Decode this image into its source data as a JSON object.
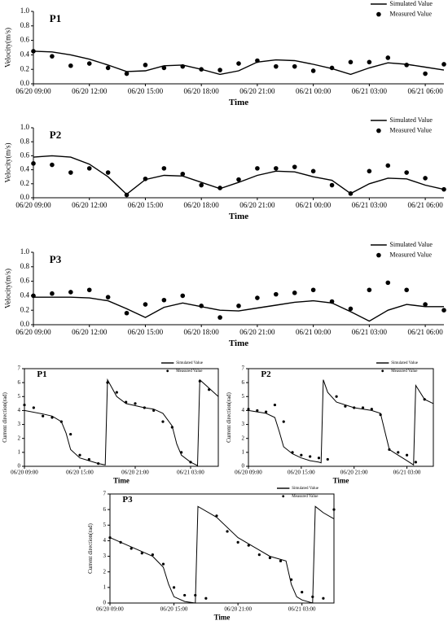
{
  "chart_data": [
    {
      "type": "line",
      "title": "P1",
      "xlabel": "Time",
      "ylabel": "Velocity(m/s)",
      "x": [
        "06/20 09:00",
        "06/20 10:00",
        "06/20 11:00",
        "06/20 12:00",
        "06/20 13:00",
        "06/20 14:00",
        "06/20 15:00",
        "06/20 16:00",
        "06/20 17:00",
        "06/20 18:00",
        "06/20 19:00",
        "06/20 20:00",
        "06/20 21:00",
        "06/20 22:00",
        "06/20 23:00",
        "06/21 00:00",
        "06/21 01:00",
        "06/21 02:00",
        "06/21 03:00",
        "06/21 04:00",
        "06/21 05:00",
        "06/21 06:00",
        "06/21 07:00"
      ],
      "xlim": [
        "06/20 09:00",
        "06/21 07:00"
      ],
      "xticks": [
        "06/20 09:00",
        "06/20 12:00",
        "06/20 15:00",
        "06/20 18:00",
        "06/20 21:00",
        "06/21 00:00",
        "06/21 03:00",
        "06/21 06:00"
      ],
      "ylim": [
        0,
        1
      ],
      "yticks": [
        {
          "value": 0,
          "label": "0.0"
        },
        0.2,
        0.4,
        0.6,
        0.8,
        {
          "value": 1,
          "label": "1.0"
        }
      ],
      "legend": "upper right",
      "frame": false,
      "series": [
        {
          "name": "Simulated Value",
          "style": "line",
          "color": "#000000",
          "values": [
            0.45,
            0.44,
            0.4,
            0.34,
            0.26,
            0.17,
            0.18,
            0.25,
            0.26,
            0.2,
            0.13,
            0.18,
            0.3,
            0.33,
            0.32,
            0.27,
            0.21,
            0.13,
            0.22,
            0.29,
            0.27,
            0.23,
            0.19
          ]
        },
        {
          "name": "Measured Value",
          "style": "marker",
          "color": "#000000",
          "values": [
            0.45,
            0.38,
            0.25,
            0.28,
            0.22,
            0.14,
            0.26,
            0.22,
            0.24,
            0.2,
            0.19,
            0.28,
            0.32,
            0.24,
            0.24,
            0.18,
            0.22,
            0.3,
            0.3,
            0.36,
            0.26,
            0.14,
            0.27
          ]
        }
      ]
    },
    {
      "type": "line",
      "title": "P2",
      "xlabel": "Time",
      "ylabel": "Velocity(m/s)",
      "x": [
        "06/20 09:00",
        "06/20 10:00",
        "06/20 11:00",
        "06/20 12:00",
        "06/20 13:00",
        "06/20 14:00",
        "06/20 15:00",
        "06/20 16:00",
        "06/20 17:00",
        "06/20 18:00",
        "06/20 19:00",
        "06/20 20:00",
        "06/20 21:00",
        "06/20 22:00",
        "06/20 23:00",
        "06/21 00:00",
        "06/21 01:00",
        "06/21 02:00",
        "06/21 03:00",
        "06/21 04:00",
        "06/21 05:00",
        "06/21 06:00",
        "06/21 07:00"
      ],
      "xlim": [
        "06/20 09:00",
        "06/21 07:00"
      ],
      "xticks": [
        "06/20 09:00",
        "06/20 12:00",
        "06/20 15:00",
        "06/20 18:00",
        "06/20 21:00",
        "06/21 00:00",
        "06/21 03:00",
        "06/21 06:00"
      ],
      "ylim": [
        0,
        1
      ],
      "yticks": [
        {
          "value": 0,
          "label": "0.0"
        },
        0.2,
        0.4,
        0.6,
        0.8,
        {
          "value": 1,
          "label": "1.0"
        }
      ],
      "legend": "upper right",
      "frame": false,
      "series": [
        {
          "name": "Simulated Value",
          "style": "line",
          "color": "#000000",
          "values": [
            0.58,
            0.6,
            0.58,
            0.48,
            0.3,
            0.05,
            0.26,
            0.32,
            0.31,
            0.22,
            0.13,
            0.22,
            0.32,
            0.38,
            0.37,
            0.3,
            0.25,
            0.06,
            0.2,
            0.28,
            0.27,
            0.18,
            0.12
          ]
        },
        {
          "name": "Measured Value",
          "style": "marker",
          "color": "#000000",
          "values": [
            0.49,
            0.47,
            0.36,
            0.42,
            0.36,
            0.04,
            0.27,
            0.42,
            0.34,
            0.18,
            0.14,
            0.26,
            0.42,
            0.42,
            0.44,
            0.38,
            0.18,
            0.06,
            0.38,
            0.46,
            0.36,
            0.28,
            0.12
          ]
        }
      ]
    },
    {
      "type": "line",
      "title": "P3",
      "xlabel": "Time",
      "ylabel": "Velocity(m/s)",
      "x": [
        "06/20 09:00",
        "06/20 10:00",
        "06/20 11:00",
        "06/20 12:00",
        "06/20 13:00",
        "06/20 14:00",
        "06/20 15:00",
        "06/20 16:00",
        "06/20 17:00",
        "06/20 18:00",
        "06/20 19:00",
        "06/20 20:00",
        "06/20 21:00",
        "06/20 22:00",
        "06/20 23:00",
        "06/21 00:00",
        "06/21 01:00",
        "06/21 02:00",
        "06/21 03:00",
        "06/21 04:00",
        "06/21 05:00",
        "06/21 06:00",
        "06/21 07:00"
      ],
      "xlim": [
        "06/20 09:00",
        "06/21 07:00"
      ],
      "xticks": [
        "06/20 09:00",
        "06/20 12:00",
        "06/20 15:00",
        "06/20 18:00",
        "06/20 21:00",
        "06/21 00:00",
        "06/21 03:00",
        "06/21 06:00"
      ],
      "ylim": [
        0,
        1
      ],
      "yticks": [
        {
          "value": 0,
          "label": "0.0"
        },
        0.2,
        0.4,
        0.6,
        0.8,
        {
          "value": 1,
          "label": "1.0"
        }
      ],
      "legend": "upper right",
      "frame": false,
      "series": [
        {
          "name": "Simulated Value",
          "style": "line",
          "color": "#000000",
          "values": [
            0.38,
            0.38,
            0.38,
            0.37,
            0.33,
            0.22,
            0.1,
            0.24,
            0.3,
            0.25,
            0.2,
            0.19,
            0.23,
            0.27,
            0.31,
            0.33,
            0.3,
            0.18,
            0.05,
            0.2,
            0.28,
            0.25,
            0.25
          ]
        },
        {
          "name": "Measured Value",
          "style": "marker",
          "color": "#000000",
          "values": [
            0.4,
            0.43,
            0.45,
            0.48,
            0.38,
            0.16,
            0.28,
            0.34,
            0.4,
            0.26,
            0.1,
            0.26,
            0.37,
            0.42,
            0.44,
            0.48,
            0.32,
            0.22,
            0.48,
            0.58,
            0.48,
            0.28,
            0.2
          ]
        }
      ]
    },
    {
      "type": "line",
      "title": "P1",
      "xlabel": "Time",
      "ylabel": "Current direction(rad)",
      "xlim": [
        "06/20 09:00",
        "06/21 06:00"
      ],
      "xticks": [
        "06/20 09:00",
        "06/20 15:00",
        "06/20 21:00",
        "06/21 03:00"
      ],
      "ylim": [
        0,
        7
      ],
      "yticks": [
        0,
        1,
        2,
        3,
        4,
        5,
        6,
        7
      ],
      "legend": "upper right",
      "frame": true,
      "series": [
        {
          "name": "Simulated Value",
          "style": "line",
          "color": "#000000",
          "x": [
            "06/20 09:00",
            "06/20 11:00",
            "06/20 12:00",
            "06/20 13:00",
            "06/20 13:30",
            "06/20 14:00",
            "06/20 15:00",
            "06/20 16:00",
            "06/20 17:00",
            "06/20 17:45",
            "06/20 18:00",
            "06/20 19:00",
            "06/20 20:00",
            "06/20 22:00",
            "06/20 23:00",
            "06/21 00:00",
            "06/21 01:00",
            "06/21 01:30",
            "06/21 02:00",
            "06/21 03:00",
            "06/21 03:45",
            "06/21 04:00",
            "06/21 05:00",
            "06/21 06:00"
          ],
          "values": [
            4.0,
            3.75,
            3.6,
            3.2,
            2.4,
            1.2,
            0.6,
            0.4,
            0.2,
            0.1,
            6.2,
            5.0,
            4.5,
            4.2,
            4.1,
            3.8,
            2.9,
            1.6,
            0.8,
            0.3,
            0.05,
            6.2,
            5.6,
            5.0
          ]
        },
        {
          "name": "Measured Value",
          "style": "marker",
          "color": "#000000",
          "x": [
            "06/20 09:00",
            "06/20 10:00",
            "06/20 11:00",
            "06/20 12:00",
            "06/20 13:00",
            "06/20 14:00",
            "06/20 15:00",
            "06/20 16:00",
            "06/20 17:00",
            "06/20 18:00",
            "06/20 19:00",
            "06/20 20:00",
            "06/20 21:00",
            "06/20 22:00",
            "06/20 23:00",
            "06/21 00:00",
            "06/21 01:00",
            "06/21 02:00",
            "06/21 03:00",
            "06/21 04:00",
            "06/21 05:00"
          ],
          "values": [
            4.4,
            4.2,
            3.6,
            3.5,
            3.2,
            2.3,
            0.8,
            0.5,
            0.2,
            6.0,
            5.3,
            4.6,
            4.5,
            4.2,
            4.0,
            3.2,
            2.8,
            1.0,
            0.3,
            6.1,
            5.5
          ]
        }
      ]
    },
    {
      "type": "line",
      "title": "P2",
      "xlabel": "Time",
      "ylabel": "Current direction(rad)",
      "xlim": [
        "06/20 09:00",
        "06/21 06:00"
      ],
      "xticks": [
        "06/20 09:00",
        "06/20 15:00",
        "06/20 21:00",
        "06/21 03:00"
      ],
      "ylim": [
        0,
        7
      ],
      "yticks": [
        0,
        1,
        2,
        3,
        4,
        5,
        6,
        7
      ],
      "legend": "upper right",
      "frame": true,
      "series": [
        {
          "name": "Simulated Value",
          "style": "line",
          "color": "#000000",
          "x": [
            "06/20 09:00",
            "06/20 11:00",
            "06/20 12:00",
            "06/20 12:30",
            "06/20 13:00",
            "06/20 14:00",
            "06/20 15:00",
            "06/20 16:00",
            "06/20 17:00",
            "06/20 17:15",
            "06/20 17:30",
            "06/20 18:00",
            "06/20 19:00",
            "06/20 21:00",
            "06/20 23:00",
            "06/21 00:00",
            "06/21 00:30",
            "06/21 01:00",
            "06/21 02:00",
            "06/21 03:00",
            "06/21 03:45",
            "06/21 04:00",
            "06/21 05:00",
            "06/21 06:00"
          ],
          "values": [
            4.0,
            3.8,
            3.5,
            2.5,
            1.4,
            0.9,
            0.6,
            0.4,
            0.3,
            0.25,
            6.2,
            5.3,
            4.6,
            4.2,
            4.0,
            3.8,
            2.5,
            1.2,
            0.8,
            0.4,
            0.1,
            5.8,
            4.8,
            4.5
          ]
        },
        {
          "name": "Measured Value",
          "style": "marker",
          "color": "#000000",
          "x": [
            "06/20 09:00",
            "06/20 10:00",
            "06/20 11:00",
            "06/20 12:00",
            "06/20 13:00",
            "06/20 14:00",
            "06/20 15:00",
            "06/20 16:00",
            "06/20 17:00",
            "06/20 18:00",
            "06/20 19:00",
            "06/20 20:00",
            "06/20 21:00",
            "06/20 22:00",
            "06/20 23:00",
            "06/21 00:00",
            "06/21 01:00",
            "06/21 02:00",
            "06/21 03:00",
            "06/21 04:00",
            "06/21 05:00"
          ],
          "values": [
            4.1,
            4.0,
            3.9,
            4.4,
            3.2,
            1.0,
            0.8,
            0.7,
            0.6,
            0.5,
            5.0,
            4.3,
            4.2,
            4.2,
            4.1,
            3.7,
            1.2,
            1.0,
            0.8,
            0.3,
            4.8
          ]
        }
      ]
    },
    {
      "type": "line",
      "title": "P3",
      "xlabel": "Time",
      "ylabel": "Current direction(rad)",
      "xlim": [
        "06/20 09:00",
        "06/21 06:00"
      ],
      "xticks": [
        "06/20 09:00",
        "06/20 15:00",
        "06/20 21:00",
        "06/21 03:00"
      ],
      "ylim": [
        0,
        7
      ],
      "yticks": [
        0,
        1,
        2,
        3,
        4,
        5,
        6,
        7
      ],
      "legend": "upper right",
      "frame": true,
      "series": [
        {
          "name": "Simulated Value",
          "style": "line",
          "color": "#000000",
          "x": [
            "06/20 09:00",
            "06/20 11:00",
            "06/20 13:00",
            "06/20 14:00",
            "06/20 14:30",
            "06/20 15:00",
            "06/20 16:00",
            "06/20 17:00",
            "06/20 17:15",
            "06/20 19:00",
            "06/20 21:00",
            "06/20 23:00",
            "06/21 00:00",
            "06/21 01:00",
            "06/21 01:30",
            "06/21 02:00",
            "06/21 02:30",
            "06/21 03:00",
            "06/21 04:00",
            "06/21 04:15",
            "06/21 05:00",
            "06/21 06:00"
          ],
          "values": [
            4.2,
            3.6,
            3.0,
            2.3,
            1.2,
            0.4,
            0.1,
            0.0,
            6.2,
            5.5,
            4.2,
            3.4,
            3.0,
            2.8,
            2.7,
            1.2,
            0.4,
            0.2,
            0.0,
            6.2,
            5.8,
            5.4
          ]
        },
        {
          "name": "Measured Value",
          "style": "marker",
          "color": "#000000",
          "x": [
            "06/20 09:00",
            "06/20 10:00",
            "06/20 11:00",
            "06/20 12:00",
            "06/20 13:00",
            "06/20 14:00",
            "06/20 15:00",
            "06/20 16:00",
            "06/20 17:00",
            "06/20 18:00",
            "06/20 19:00",
            "06/20 20:00",
            "06/20 21:00",
            "06/20 22:00",
            "06/20 23:00",
            "06/21 00:00",
            "06/21 01:00",
            "06/21 02:00",
            "06/21 03:00",
            "06/21 04:00",
            "06/21 05:00",
            "06/21 06:00"
          ],
          "values": [
            4.2,
            3.9,
            3.5,
            3.2,
            3.1,
            2.5,
            1.0,
            0.5,
            0.5,
            0.3,
            5.6,
            4.6,
            3.9,
            3.7,
            3.1,
            2.9,
            2.7,
            1.5,
            0.7,
            0.4,
            0.3,
            6.0
          ]
        }
      ]
    }
  ]
}
